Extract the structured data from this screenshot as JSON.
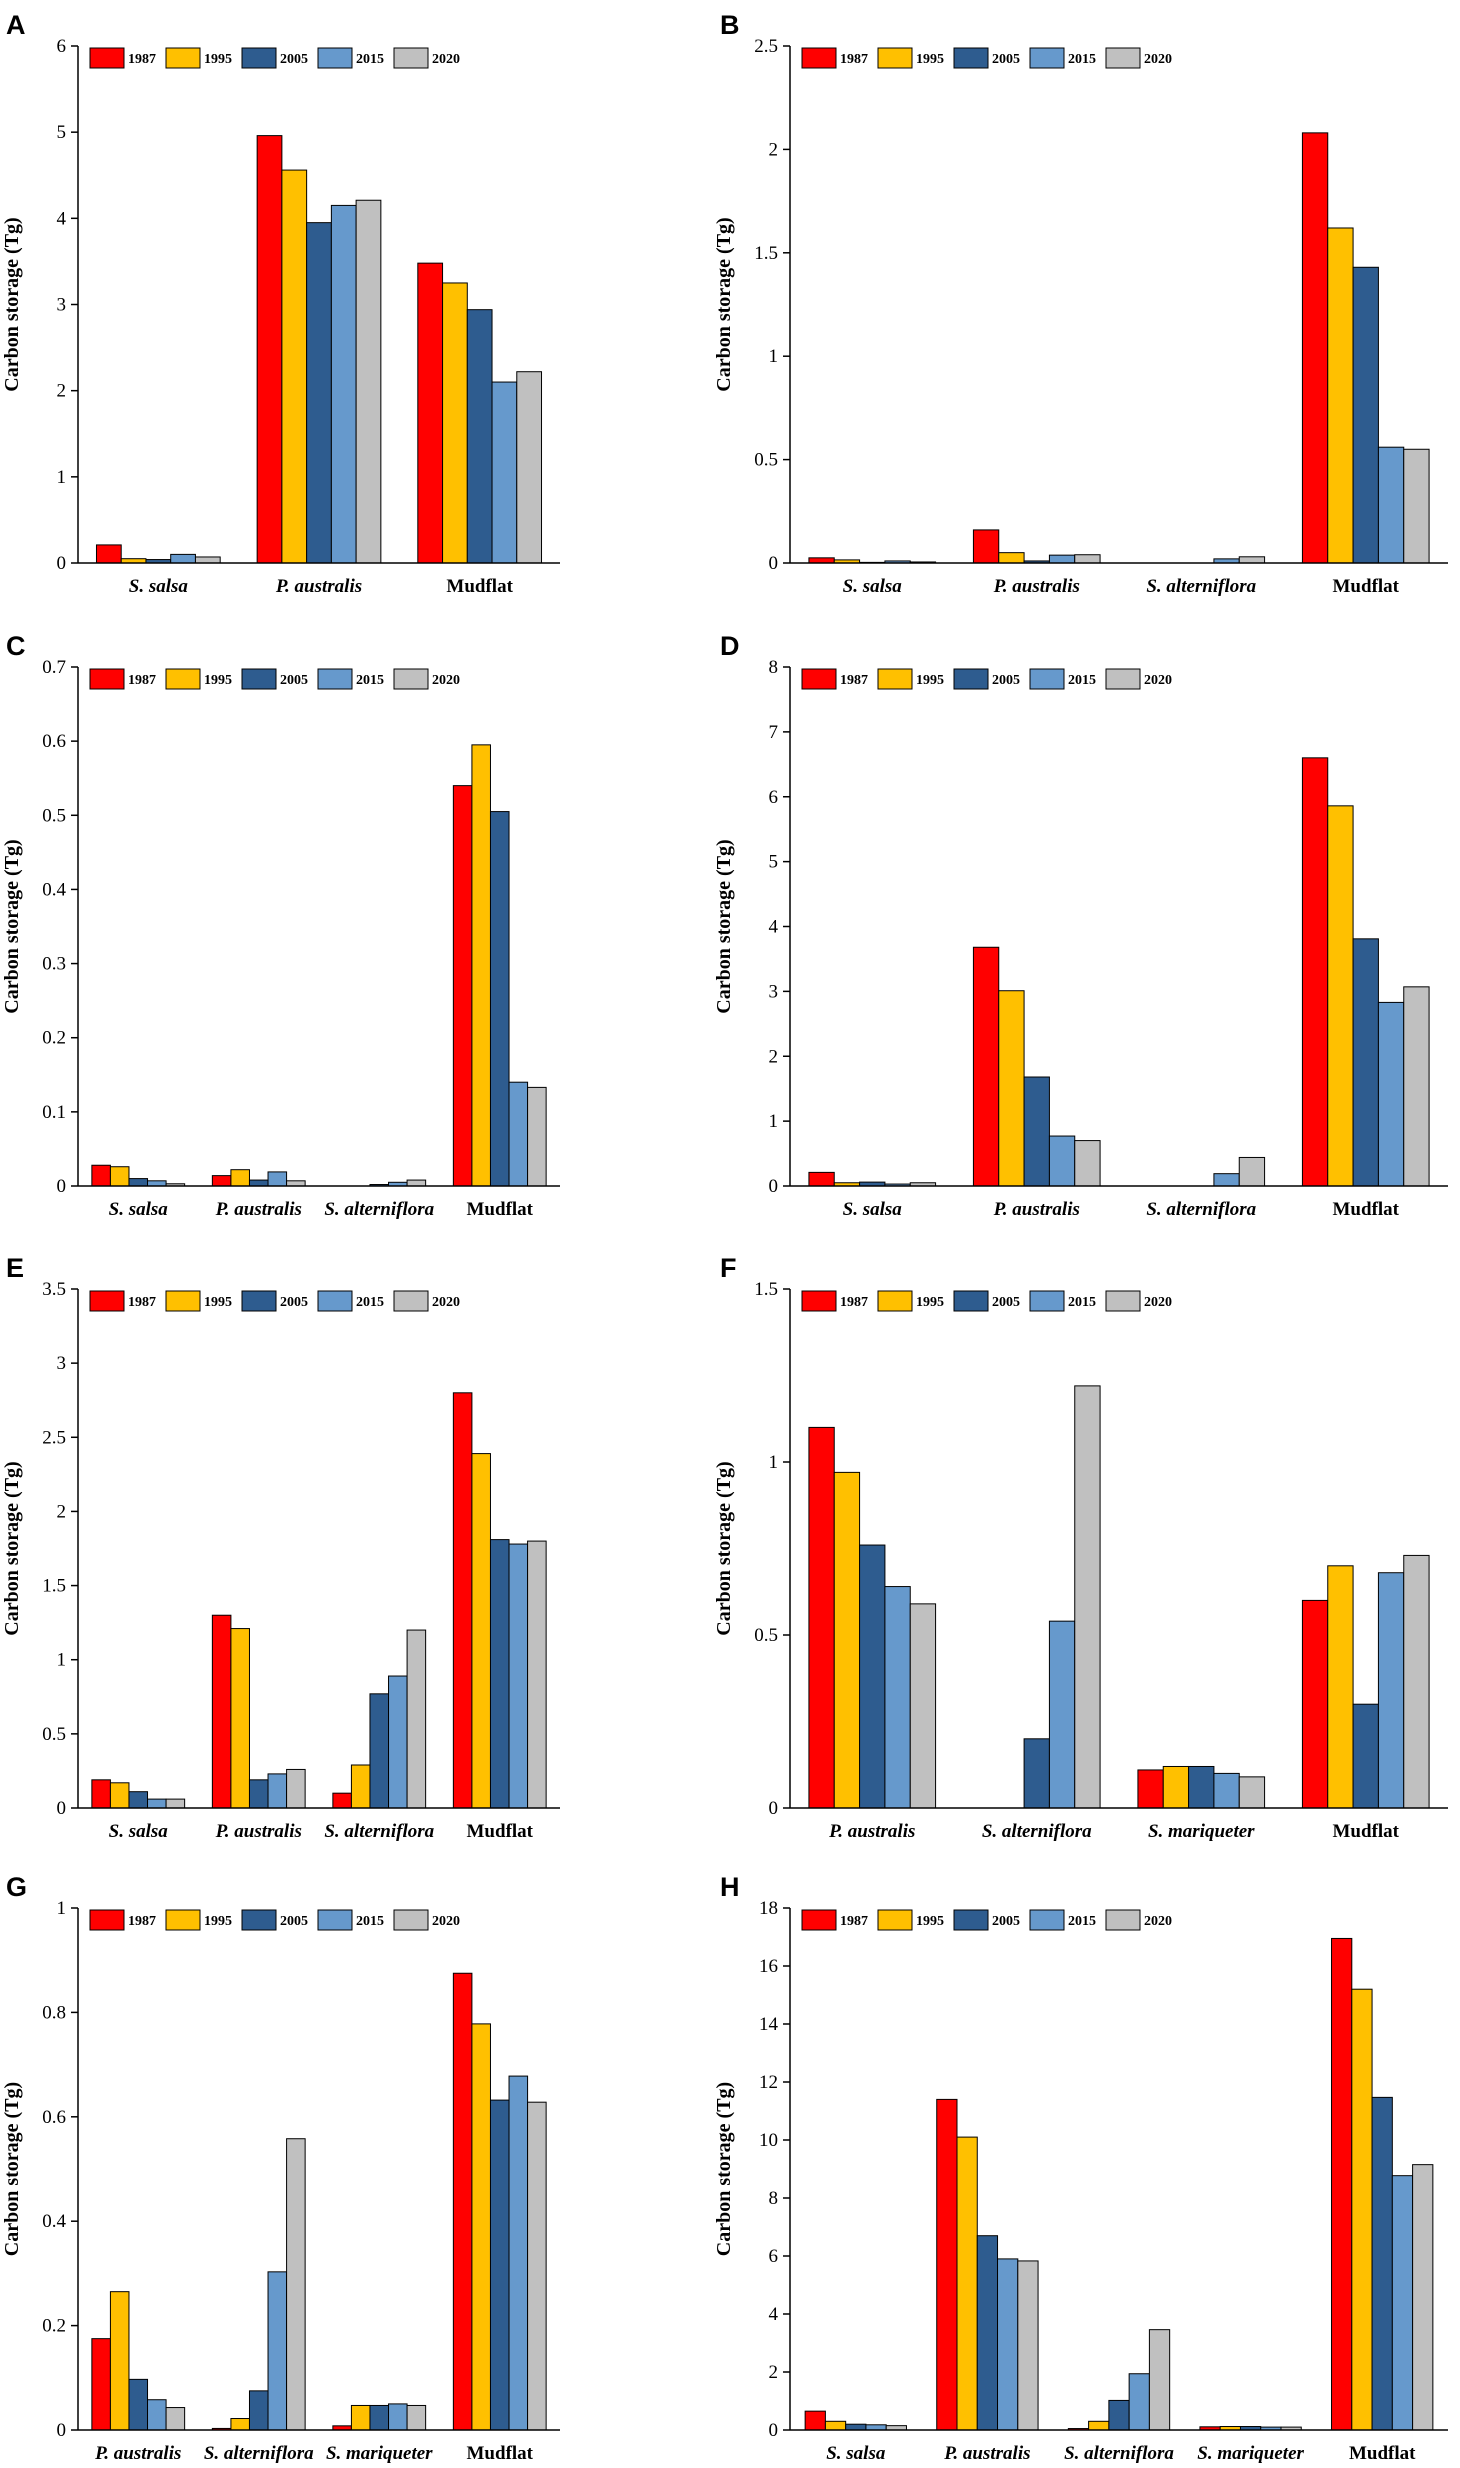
{
  "legend": [
    "1987",
    "1995",
    "2005",
    "2015",
    "2020"
  ],
  "colors": {
    "1987": "#ff0000",
    "1995": "#ffc000",
    "2005": "#2e5c8f",
    "2015": "#6699cc",
    "2020": "#c0c0c0"
  },
  "chart_data": [
    {
      "panel": "A",
      "type": "bar",
      "ylabel": "Carbon storage (Tg)",
      "ylim": [
        0,
        6
      ],
      "yticks": [
        "0",
        "1",
        "2",
        "3",
        "4",
        "5",
        "6"
      ],
      "categories": [
        "S. salsa",
        "P. australis",
        "Mudflat"
      ],
      "italic": [
        true,
        true,
        false
      ],
      "series": [
        {
          "name": "1987",
          "values": [
            0.21,
            4.96,
            3.48
          ]
        },
        {
          "name": "1995",
          "values": [
            0.05,
            4.56,
            3.25
          ]
        },
        {
          "name": "2005",
          "values": [
            0.04,
            3.95,
            2.94
          ]
        },
        {
          "name": "2015",
          "values": [
            0.1,
            4.15,
            2.1
          ]
        },
        {
          "name": "2020",
          "values": [
            0.07,
            4.21,
            2.22
          ]
        }
      ]
    },
    {
      "panel": "B",
      "type": "bar",
      "ylabel": "Carbon storage (Tg)",
      "ylim": [
        0,
        2.5
      ],
      "yticks": [
        "0",
        "0.5",
        "1",
        "1.5",
        "2",
        "2.5"
      ],
      "categories": [
        "S. salsa",
        "P. australis",
        "S. alterniflora",
        "Mudflat"
      ],
      "italic": [
        true,
        true,
        true,
        false
      ],
      "series": [
        {
          "name": "1987",
          "values": [
            0.025,
            0.16,
            0,
            2.08
          ]
        },
        {
          "name": "1995",
          "values": [
            0.015,
            0.05,
            0,
            1.62
          ]
        },
        {
          "name": "2005",
          "values": [
            0.003,
            0.01,
            0,
            1.43
          ]
        },
        {
          "name": "2015",
          "values": [
            0.01,
            0.038,
            0.02,
            0.56
          ]
        },
        {
          "name": "2020",
          "values": [
            0.005,
            0.04,
            0.03,
            0.55
          ]
        }
      ]
    },
    {
      "panel": "C",
      "type": "bar",
      "ylabel": "Carbon storage (Tg)",
      "ylim": [
        0,
        0.7
      ],
      "yticks": [
        "0",
        "0.1",
        "0.2",
        "0.3",
        "0.4",
        "0.5",
        "0.6",
        "0.7"
      ],
      "categories": [
        "S. salsa",
        "P. australis",
        "S. alterniflora",
        "Mudflat"
      ],
      "italic": [
        true,
        true,
        true,
        false
      ],
      "series": [
        {
          "name": "1987",
          "values": [
            0.028,
            0.014,
            0,
            0.54
          ]
        },
        {
          "name": "1995",
          "values": [
            0.026,
            0.022,
            0,
            0.595
          ]
        },
        {
          "name": "2005",
          "values": [
            0.01,
            0.008,
            0.002,
            0.505
          ]
        },
        {
          "name": "2015",
          "values": [
            0.007,
            0.019,
            0.005,
            0.14
          ]
        },
        {
          "name": "2020",
          "values": [
            0.003,
            0.007,
            0.008,
            0.133
          ]
        }
      ]
    },
    {
      "panel": "D",
      "type": "bar",
      "ylabel": "Carbon storage (Tg)",
      "ylim": [
        0,
        8
      ],
      "yticks": [
        "0",
        "1",
        "2",
        "3",
        "4",
        "5",
        "6",
        "7",
        "8"
      ],
      "categories": [
        "S. salsa",
        "P. australis",
        "S. alterniflora",
        "Mudflat"
      ],
      "italic": [
        true,
        true,
        true,
        false
      ],
      "series": [
        {
          "name": "1987",
          "values": [
            0.21,
            3.68,
            0,
            6.6
          ]
        },
        {
          "name": "1995",
          "values": [
            0.05,
            3.01,
            0,
            5.86
          ]
        },
        {
          "name": "2005",
          "values": [
            0.06,
            1.68,
            0,
            3.81
          ]
        },
        {
          "name": "2015",
          "values": [
            0.03,
            0.77,
            0.19,
            2.83
          ]
        },
        {
          "name": "2020",
          "values": [
            0.05,
            0.7,
            0.44,
            3.07
          ]
        }
      ]
    },
    {
      "panel": "E",
      "type": "bar",
      "ylabel": "Carbon storage (Tg)",
      "ylim": [
        0,
        3.5
      ],
      "yticks": [
        "0",
        "0.5",
        "1",
        "1.5",
        "2",
        "2.5",
        "3",
        "3.5"
      ],
      "categories": [
        "S. salsa",
        "P. australis",
        "S. alterniflora",
        "Mudflat"
      ],
      "italic": [
        true,
        true,
        true,
        false
      ],
      "series": [
        {
          "name": "1987",
          "values": [
            0.19,
            1.3,
            0.1,
            2.8
          ]
        },
        {
          "name": "1995",
          "values": [
            0.17,
            1.21,
            0.29,
            2.39
          ]
        },
        {
          "name": "2005",
          "values": [
            0.11,
            0.19,
            0.77,
            1.81
          ]
        },
        {
          "name": "2015",
          "values": [
            0.06,
            0.23,
            0.89,
            1.78
          ]
        },
        {
          "name": "2020",
          "values": [
            0.06,
            0.26,
            1.2,
            1.8
          ]
        }
      ]
    },
    {
      "panel": "F",
      "type": "bar",
      "ylabel": "Carbon storage (Tg)",
      "ylim": [
        0,
        1.5
      ],
      "yticks": [
        "0",
        "0.5",
        "1",
        "1.5"
      ],
      "categories": [
        "P. australis",
        "S. alterniflora",
        "S. mariqueter",
        "Mudflat"
      ],
      "italic": [
        true,
        true,
        true,
        false
      ],
      "series": [
        {
          "name": "1987",
          "values": [
            1.1,
            0,
            0.11,
            0.6
          ]
        },
        {
          "name": "1995",
          "values": [
            0.97,
            0,
            0.12,
            0.7
          ]
        },
        {
          "name": "2005",
          "values": [
            0.76,
            0.2,
            0.12,
            0.3
          ]
        },
        {
          "name": "2015",
          "values": [
            0.64,
            0.54,
            0.1,
            0.68
          ]
        },
        {
          "name": "2020",
          "values": [
            0.59,
            1.22,
            0.09,
            0.73
          ]
        }
      ]
    },
    {
      "panel": "G",
      "type": "bar",
      "ylabel": "Carbon storage (Tg)",
      "ylim": [
        0,
        1
      ],
      "yticks": [
        "0",
        "0.2",
        "0.4",
        "0.6",
        "0.8",
        "1"
      ],
      "categories": [
        "P. australis",
        "S. alterniflora",
        "S. mariqueter",
        "Mudflat"
      ],
      "italic": [
        true,
        true,
        true,
        false
      ],
      "series": [
        {
          "name": "1987",
          "values": [
            0.175,
            0.003,
            0.008,
            0.875
          ]
        },
        {
          "name": "1995",
          "values": [
            0.265,
            0.022,
            0.047,
            0.778
          ]
        },
        {
          "name": "2005",
          "values": [
            0.097,
            0.075,
            0.047,
            0.632
          ]
        },
        {
          "name": "2015",
          "values": [
            0.058,
            0.303,
            0.05,
            0.678
          ]
        },
        {
          "name": "2020",
          "values": [
            0.043,
            0.558,
            0.047,
            0.628
          ]
        }
      ]
    },
    {
      "panel": "H",
      "type": "bar",
      "ylabel": "Carbon storage (Tg)",
      "ylim": [
        0,
        18
      ],
      "yticks": [
        "0",
        "2",
        "4",
        "6",
        "8",
        "10",
        "12",
        "14",
        "16",
        "18"
      ],
      "categories": [
        "S. salsa",
        "P. australis",
        "S. alterniflora",
        "S. mariqueter",
        "Mudflat"
      ],
      "italic": [
        true,
        true,
        true,
        true,
        false
      ],
      "series": [
        {
          "name": "1987",
          "values": [
            0.65,
            11.4,
            0.05,
            0.11,
            16.95
          ]
        },
        {
          "name": "1995",
          "values": [
            0.3,
            10.1,
            0.3,
            0.12,
            15.2
          ]
        },
        {
          "name": "2005",
          "values": [
            0.2,
            6.7,
            1.02,
            0.12,
            11.47
          ]
        },
        {
          "name": "2015",
          "values": [
            0.18,
            5.9,
            1.94,
            0.1,
            8.77
          ]
        },
        {
          "name": "2020",
          "values": [
            0.15,
            5.83,
            3.46,
            0.1,
            9.15
          ]
        }
      ]
    }
  ]
}
